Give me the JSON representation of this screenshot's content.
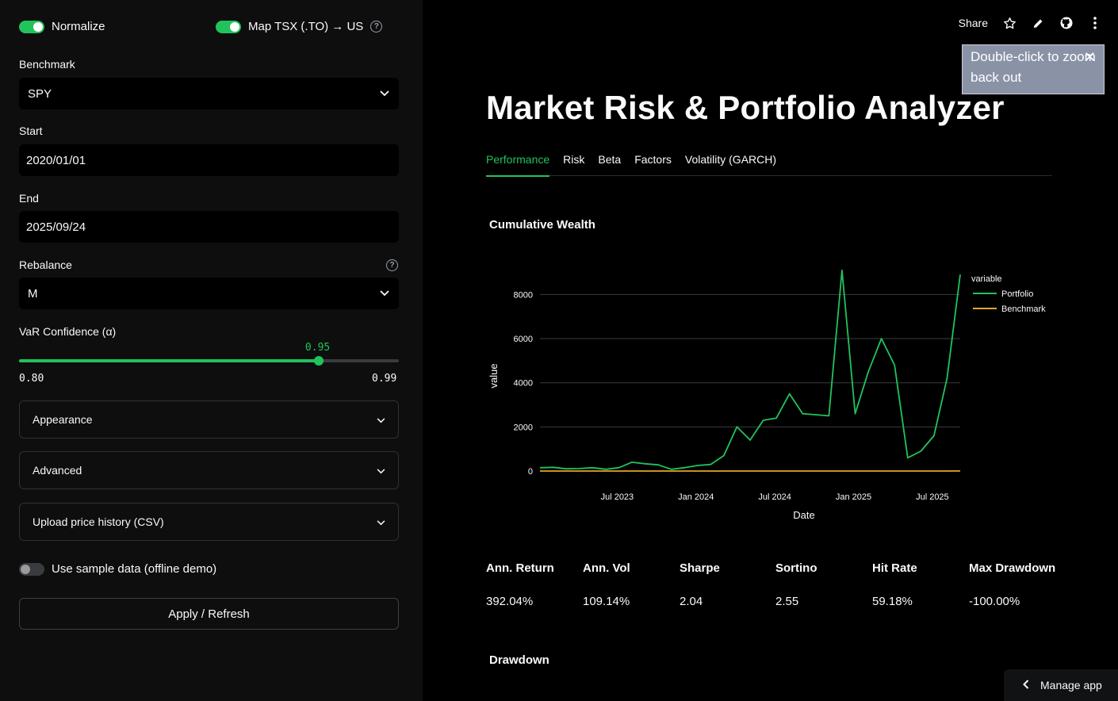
{
  "sidebar": {
    "normalize_label": "Normalize",
    "map_tsx_label": "Map TSX (.TO) → US",
    "benchmark_label": "Benchmark",
    "benchmark_value": "SPY",
    "start_label": "Start",
    "start_value": "2020/01/01",
    "end_label": "End",
    "end_value": "2025/09/24",
    "rebalance_label": "Rebalance",
    "rebalance_value": "M",
    "var_label": "VaR Confidence (α)",
    "var_value": "0.95",
    "var_min": "0.80",
    "var_max": "0.99",
    "var_fraction": 0.789,
    "expanders": [
      "Appearance",
      "Advanced",
      "Upload price history (CSV)"
    ],
    "sample_label": "Use sample data (offline demo)",
    "apply_label": "Apply / Refresh"
  },
  "toolbar": {
    "share_label": "Share"
  },
  "tooltip": {
    "text": "Double-click to zoom back out"
  },
  "main": {
    "title": "Market Risk & Portfolio Analyzer",
    "tabs": [
      "Performance",
      "Risk",
      "Beta",
      "Factors",
      "Volatility (GARCH)"
    ],
    "chart_title": "Cumulative Wealth",
    "metrics": [
      {
        "label": "Ann. Return",
        "value": "392.04%"
      },
      {
        "label": "Ann. Vol",
        "value": "109.14%"
      },
      {
        "label": "Sharpe",
        "value": "2.04"
      },
      {
        "label": "Sortino",
        "value": "2.55"
      },
      {
        "label": "Hit Rate",
        "value": "59.18%"
      },
      {
        "label": "Max Drawdown",
        "value": "-100.00%"
      }
    ],
    "drawdown_title": "Drawdown"
  },
  "manage_label": "Manage app",
  "colors": {
    "accent": "#21c35c",
    "portfolio": "#21c35c",
    "benchmark": "#e4a826"
  },
  "chart_data": {
    "type": "line",
    "title": "Cumulative Wealth",
    "xlabel": "Date",
    "ylabel": "value",
    "x_ticks": [
      "Jul 2023",
      "Jan 2024",
      "Jul 2024",
      "Jan 2025",
      "Jul 2025"
    ],
    "y_ticks": [
      0,
      2000,
      4000,
      6000,
      8000
    ],
    "ylim": [
      0,
      9200
    ],
    "legend_title": "variable",
    "legend_position": "right",
    "grid": true,
    "x": [
      "2023-01",
      "2023-02",
      "2023-03",
      "2023-04",
      "2023-05",
      "2023-06",
      "2023-07",
      "2023-08",
      "2023-09",
      "2023-10",
      "2023-11",
      "2023-12",
      "2024-01",
      "2024-02",
      "2024-03",
      "2024-04",
      "2024-05",
      "2024-06",
      "2024-07",
      "2024-08",
      "2024-09",
      "2024-10",
      "2024-11",
      "2024-12",
      "2025-01",
      "2025-02",
      "2025-03",
      "2025-04",
      "2025-05",
      "2025-06",
      "2025-07",
      "2025-08",
      "2025-09"
    ],
    "series": [
      {
        "name": "Portfolio",
        "values": [
          150,
          170,
          100,
          110,
          150,
          80,
          150,
          400,
          330,
          280,
          80,
          150,
          250,
          300,
          700,
          2000,
          1400,
          2300,
          2400,
          3500,
          2600,
          2550,
          2500,
          9100,
          2600,
          4500,
          6000,
          4800,
          600,
          900,
          1600,
          4200,
          8900
        ]
      },
      {
        "name": "Benchmark",
        "values": [
          1,
          1,
          1,
          1,
          1,
          1,
          1,
          1,
          1,
          1,
          1,
          1,
          1,
          1,
          1,
          1,
          1,
          1,
          1,
          1,
          1,
          1,
          1,
          1,
          1,
          1,
          1,
          1,
          1,
          1,
          1,
          1,
          2
        ]
      }
    ]
  }
}
